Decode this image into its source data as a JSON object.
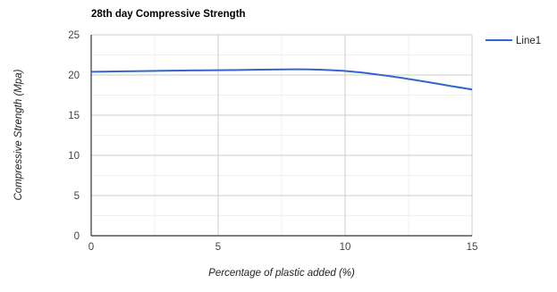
{
  "chart_data": {
    "type": "line",
    "title": "28th day Compressive Strength",
    "xlabel": "Percentage of plastic added (%)",
    "ylabel": "Compressive Strength (Mpa)",
    "x": [
      0,
      5,
      10,
      15
    ],
    "x_ticks": [
      0,
      5,
      10,
      15
    ],
    "y_ticks": [
      0,
      5,
      10,
      15,
      20,
      25
    ],
    "xlim": [
      0,
      15
    ],
    "ylim": [
      0,
      25
    ],
    "grid": true,
    "legend_position": "right",
    "series": [
      {
        "name": "Line1",
        "values": [
          20.4,
          20.6,
          20.5,
          18.2
        ],
        "color": "#3366cc"
      }
    ]
  }
}
